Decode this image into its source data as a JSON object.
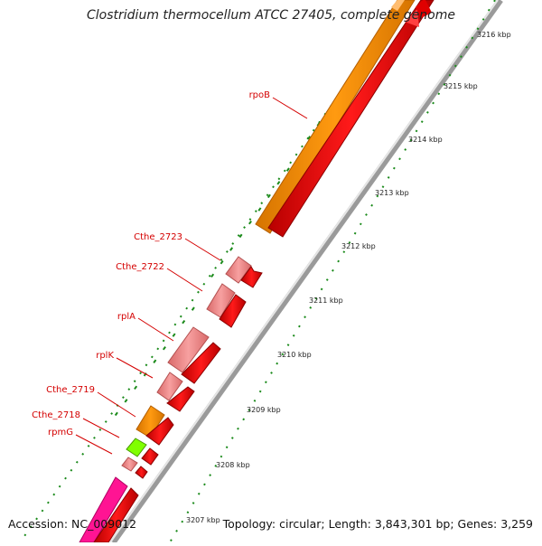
{
  "title": "Clostridium thermocellum ATCC 27405, complete genome",
  "footer": {
    "accession": "Accession: NC_009012",
    "topology": "Topology: circular; Length: 3,843,301 bp; Genes: 3,259"
  },
  "scale": {
    "unit": "kbp",
    "ticks": [
      "3216 kbp",
      "3215 kbp",
      "3214 kbp",
      "3213 kbp",
      "3212 kbp",
      "3211 kbp",
      "3210 kbp",
      "3209 kbp",
      "3208 kbp",
      "3207 kbp"
    ]
  },
  "genes": [
    {
      "name": "rpoB"
    },
    {
      "name": "Cthe_2723"
    },
    {
      "name": "Cthe_2722"
    },
    {
      "name": "rplA"
    },
    {
      "name": "rplK"
    },
    {
      "name": "Cthe_2719"
    },
    {
      "name": "Cthe_2718"
    },
    {
      "name": "rpmG"
    }
  ],
  "colors": {
    "cds": "#ff0000",
    "gene_pink": "#f08080",
    "gene_orange": "#ff8c00",
    "gene_green": "#80ff00",
    "gene_magenta": "#ff1493",
    "backbone": "#9a9a9a",
    "tick": "#1a8a1a",
    "label": "#d40000"
  }
}
